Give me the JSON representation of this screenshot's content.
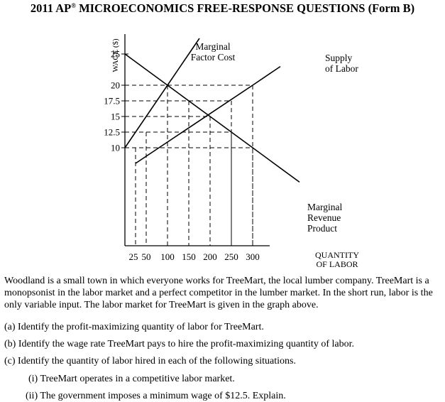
{
  "header": {
    "title_pre": "2011 AP",
    "title_reg": "®",
    "title_post": " MICROECONOMICS FREE-RESPONSE QUESTIONS (Form B)"
  },
  "chart_data": {
    "type": "line",
    "ylabel": "WAGE ($)",
    "xlabel_lines": [
      "QUANTITY",
      "OF LABOR"
    ],
    "x_ticks": [
      25,
      50,
      100,
      150,
      200,
      250,
      300
    ],
    "y_ticks": [
      25,
      20,
      17.5,
      15,
      12.5,
      10
    ],
    "y_tick_labels": [
      "25",
      "20",
      "17.5",
      "15",
      "12.5",
      "10"
    ],
    "xlim": [
      0,
      375
    ],
    "ylim": [
      0,
      27
    ],
    "series": [
      {
        "name": "Marginal Factor Cost",
        "label_lines": [
          "Marginal",
          "Factor Cost"
        ],
        "x": [
          0,
          100,
          175
        ],
        "y": [
          10,
          20,
          27.5
        ]
      },
      {
        "name": "Supply of Labor",
        "label_lines": [
          "Supply",
          "of Labor"
        ],
        "x": [
          25,
          300,
          365
        ],
        "y": [
          7.5,
          20,
          23
        ]
      },
      {
        "name": "Marginal Revenue Product",
        "label_lines": [
          "Marginal",
          "Revenue",
          "Product"
        ],
        "x": [
          0,
          100,
          200,
          300,
          410
        ],
        "y": [
          25,
          20,
          15,
          10,
          4.5
        ]
      }
    ],
    "reference_lines": [
      {
        "x": 100,
        "y": 20
      },
      {
        "x": 150,
        "y": 17.5
      },
      {
        "x": 200,
        "y": 15
      },
      {
        "x": 250,
        "y": 17.5
      },
      {
        "x": 250,
        "y": 12.5
      },
      {
        "x": 300,
        "y": 20
      },
      {
        "x": 300,
        "y": 10
      },
      {
        "x": 25,
        "y": 10
      },
      {
        "x": 50,
        "y": 12.5
      }
    ],
    "grid": false
  },
  "text": {
    "paragraph": "Woodland is a small town in which everyone works for TreeMart, the local lumber company. TreeMart is a monopsonist in the labor market and a perfect competitor in the lumber market. In the short run, labor is the only variable input. The labor market for TreeMart is given in the graph above.",
    "part_a": "(a)  Identify the profit-maximizing quantity of labor for TreeMart.",
    "part_b": "(b)  Identify the wage rate TreeMart pays to hire the profit-maximizing quantity of labor.",
    "part_c": "(c)  Identify the quantity of labor hired in each of the following situations.",
    "part_c_i": "(i)  TreeMart operates in a competitive labor market.",
    "part_c_ii": "(ii)  The government imposes a minimum wage of $12.5. Explain."
  }
}
